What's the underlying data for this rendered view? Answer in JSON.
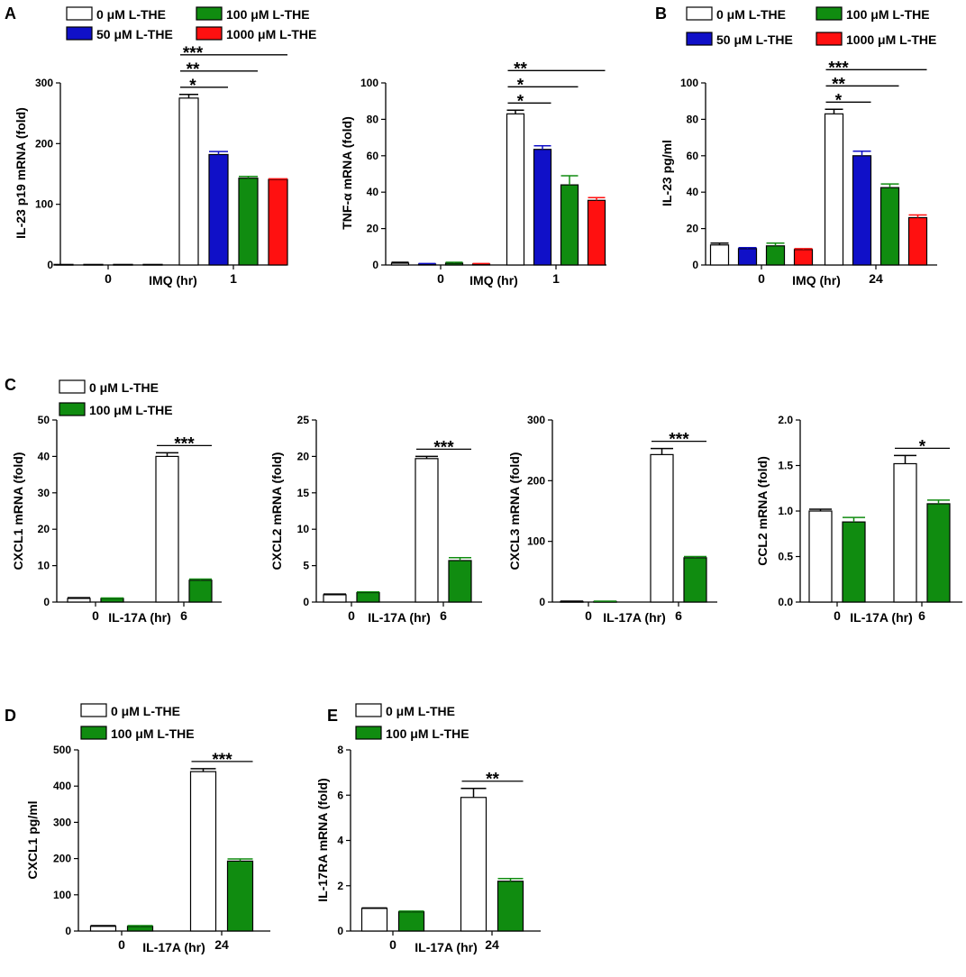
{
  "panels": [
    {
      "id": "A",
      "label": "A"
    },
    {
      "id": "B",
      "label": "B"
    },
    {
      "id": "C",
      "label": "C"
    },
    {
      "id": "D",
      "label": "D"
    },
    {
      "id": "E",
      "label": "E"
    }
  ],
  "legends": [
    {
      "id": "A",
      "entries": [
        {
          "text": "0 μM L-THE",
          "color": "#ffffff"
        },
        {
          "text": "50 μM L-THE",
          "color": "#1010c8"
        },
        {
          "text": "100 μM L-THE",
          "color": "#108c10"
        },
        {
          "text": "1000 μM L-THE",
          "color": "#ff1010"
        }
      ]
    },
    {
      "id": "B",
      "entries": [
        {
          "text": "0 μM L-THE",
          "color": "#ffffff"
        },
        {
          "text": "50 μM L-THE",
          "color": "#1010c8"
        },
        {
          "text": "100 μM L-THE",
          "color": "#108c10"
        },
        {
          "text": "1000 μM L-THE",
          "color": "#ff1010"
        }
      ]
    },
    {
      "id": "C",
      "entries": [
        {
          "text": "0 μM L-THE",
          "color": "#ffffff"
        },
        {
          "text": "100 μM L-THE",
          "color": "#108c10"
        }
      ]
    },
    {
      "id": "D",
      "entries": [
        {
          "text": "0 μM L-THE",
          "color": "#ffffff"
        },
        {
          "text": "100 μM L-THE",
          "color": "#108c10"
        }
      ]
    },
    {
      "id": "E",
      "entries": [
        {
          "text": "0 μM L-THE",
          "color": "#ffffff"
        },
        {
          "text": "100 μM L-THE",
          "color": "#108c10"
        }
      ]
    }
  ],
  "chart_data": [
    {
      "id": "A1",
      "panel": "A",
      "type": "bar",
      "ylabel": "IL-23 p19 mRNA (fold)",
      "xlabel": "IMQ (hr)",
      "ylim": [
        0,
        300
      ],
      "yticks": [
        0,
        100,
        200,
        300
      ],
      "categories": [
        "0",
        "1"
      ],
      "series": [
        {
          "name": "0 μM L-THE",
          "color": "#ffffff",
          "values": [
            1,
            275
          ],
          "errors": [
            0,
            6
          ]
        },
        {
          "name": "50 μM L-THE",
          "color": "#1010c8",
          "values": [
            1,
            182
          ],
          "errors": [
            0,
            5
          ]
        },
        {
          "name": "100 μM L-THE",
          "color": "#108c10",
          "values": [
            1,
            143
          ],
          "errors": [
            0,
            3
          ]
        },
        {
          "name": "1000 μM L-THE",
          "color": "#ff1010",
          "values": [
            1,
            141
          ],
          "errors": [
            0,
            1
          ]
        }
      ],
      "significance": [
        {
          "category": "1",
          "from": 0,
          "to": 1,
          "label": "*"
        },
        {
          "category": "1",
          "from": 0,
          "to": 2,
          "label": "**"
        },
        {
          "category": "1",
          "from": 0,
          "to": 3,
          "label": "***"
        }
      ]
    },
    {
      "id": "A2",
      "panel": "A",
      "type": "bar",
      "ylabel": "TNF-α mRNA (fold)",
      "xlabel": "IMQ (hr)",
      "ylim": [
        0,
        100
      ],
      "yticks": [
        0,
        20,
        40,
        60,
        80,
        100
      ],
      "categories": [
        "0",
        "1"
      ],
      "series": [
        {
          "name": "0 μM L-THE",
          "color": "#ffffff",
          "values": [
            1,
            83
          ],
          "errors": [
            0.5,
            2
          ]
        },
        {
          "name": "50 μM L-THE",
          "color": "#1010c8",
          "values": [
            0.5,
            63.5
          ],
          "errors": [
            0.3,
            2
          ]
        },
        {
          "name": "100 μM L-THE",
          "color": "#108c10",
          "values": [
            1,
            44
          ],
          "errors": [
            0.5,
            5
          ]
        },
        {
          "name": "1000 μM L-THE",
          "color": "#ff1010",
          "values": [
            0.5,
            35.5
          ],
          "errors": [
            0.3,
            1.5
          ]
        }
      ],
      "significance": [
        {
          "category": "1",
          "from": 0,
          "to": 1,
          "label": "*"
        },
        {
          "category": "1",
          "from": 0,
          "to": 2,
          "label": "*"
        },
        {
          "category": "1",
          "from": 0,
          "to": 3,
          "label": "**"
        }
      ]
    },
    {
      "id": "B1",
      "panel": "B",
      "type": "bar",
      "ylabel": "IL-23 pg/ml",
      "xlabel": "IMQ (hr)",
      "ylim": [
        0,
        100
      ],
      "yticks": [
        0,
        20,
        40,
        60,
        80,
        100
      ],
      "categories": [
        "0",
        "24"
      ],
      "series": [
        {
          "name": "0 μM L-THE",
          "color": "#ffffff",
          "values": [
            11,
            83
          ],
          "errors": [
            1,
            2.5
          ]
        },
        {
          "name": "50 μM L-THE",
          "color": "#1010c8",
          "values": [
            9,
            60
          ],
          "errors": [
            0.5,
            2.5
          ]
        },
        {
          "name": "100 μM L-THE",
          "color": "#108c10",
          "values": [
            10.5,
            42.5
          ],
          "errors": [
            1.5,
            2
          ]
        },
        {
          "name": "1000 μM L-THE",
          "color": "#ff1010",
          "values": [
            8.5,
            26
          ],
          "errors": [
            0.5,
            1.5
          ]
        }
      ],
      "significance": [
        {
          "category": "24",
          "from": 0,
          "to": 1,
          "label": "*"
        },
        {
          "category": "24",
          "from": 0,
          "to": 2,
          "label": "**"
        },
        {
          "category": "24",
          "from": 0,
          "to": 3,
          "label": "***"
        }
      ]
    },
    {
      "id": "C1",
      "panel": "C",
      "type": "bar",
      "ylabel": "CXCL1 mRNA (fold)",
      "xlabel": "IL-17A (hr)",
      "ylim": [
        0,
        50
      ],
      "yticks": [
        0,
        10,
        20,
        30,
        40,
        50
      ],
      "categories": [
        "0",
        "6"
      ],
      "series": [
        {
          "name": "0 μM L-THE",
          "color": "#ffffff",
          "values": [
            1,
            40
          ],
          "errors": [
            0.2,
            1
          ]
        },
        {
          "name": "100 μM L-THE",
          "color": "#108c10",
          "values": [
            1,
            6
          ],
          "errors": [
            0.1,
            0.3
          ]
        }
      ],
      "significance": [
        {
          "category": "6",
          "from": 0,
          "to": 1,
          "label": "***"
        }
      ]
    },
    {
      "id": "C2",
      "panel": "C",
      "type": "bar",
      "ylabel": "CXCL2 mRNA (fold)",
      "xlabel": "IL-17A (hr)",
      "ylim": [
        0,
        25
      ],
      "yticks": [
        0,
        5,
        10,
        15,
        20,
        25
      ],
      "categories": [
        "0",
        "6"
      ],
      "series": [
        {
          "name": "0 μM L-THE",
          "color": "#ffffff",
          "values": [
            1,
            19.7
          ],
          "errors": [
            0.1,
            0.3
          ]
        },
        {
          "name": "100 μM L-THE",
          "color": "#108c10",
          "values": [
            1.3,
            5.7
          ],
          "errors": [
            0.1,
            0.4
          ]
        }
      ],
      "significance": [
        {
          "category": "6",
          "from": 0,
          "to": 1,
          "label": "***"
        }
      ]
    },
    {
      "id": "C3",
      "panel": "C",
      "type": "bar",
      "ylabel": "CXCL3 mRNA (fold)",
      "xlabel": "IL-17A (hr)",
      "ylim": [
        0,
        300
      ],
      "yticks": [
        0,
        100,
        200,
        300
      ],
      "categories": [
        "0",
        "6"
      ],
      "series": [
        {
          "name": "0 μM L-THE",
          "color": "#ffffff",
          "values": [
            1,
            243
          ],
          "errors": [
            0.5,
            10
          ]
        },
        {
          "name": "100 μM L-THE",
          "color": "#108c10",
          "values": [
            1,
            73
          ],
          "errors": [
            0.5,
            2
          ]
        }
      ],
      "significance": [
        {
          "category": "6",
          "from": 0,
          "to": 1,
          "label": "***"
        }
      ]
    },
    {
      "id": "C4",
      "panel": "C",
      "type": "bar",
      "ylabel": "CCL2 mRNA (fold)",
      "xlabel": "IL-17A (hr)",
      "ylim": [
        0,
        2.0
      ],
      "yticks": [
        0.0,
        0.5,
        1.0,
        1.5,
        2.0
      ],
      "tick_decimals": 1,
      "categories": [
        "0",
        "6"
      ],
      "series": [
        {
          "name": "0 μM L-THE",
          "color": "#ffffff",
          "values": [
            1.0,
            1.52
          ],
          "errors": [
            0.02,
            0.09
          ]
        },
        {
          "name": "100 μM L-THE",
          "color": "#108c10",
          "values": [
            0.88,
            1.08
          ],
          "errors": [
            0.05,
            0.04
          ]
        }
      ],
      "significance": [
        {
          "category": "6",
          "from": 0,
          "to": 1,
          "label": "*"
        }
      ]
    },
    {
      "id": "D1",
      "panel": "D",
      "type": "bar",
      "ylabel": "CXCL1  pg/ml",
      "xlabel": "IL-17A (hr)",
      "ylim": [
        0,
        500
      ],
      "yticks": [
        0,
        100,
        200,
        300,
        400,
        500
      ],
      "categories": [
        "0",
        "24"
      ],
      "series": [
        {
          "name": "0 μM L-THE",
          "color": "#ffffff",
          "values": [
            13,
            440
          ],
          "errors": [
            2,
            8
          ]
        },
        {
          "name": "100 μM L-THE",
          "color": "#108c10",
          "values": [
            13,
            193
          ],
          "errors": [
            2,
            6
          ]
        }
      ],
      "significance": [
        {
          "category": "24",
          "from": 0,
          "to": 1,
          "label": "***"
        }
      ]
    },
    {
      "id": "E1",
      "panel": "E",
      "type": "bar",
      "ylabel": "IL-17RA mRNA (fold)",
      "xlabel": "IL-17A (hr)",
      "ylim": [
        0,
        8
      ],
      "yticks": [
        0,
        2,
        4,
        6,
        8
      ],
      "categories": [
        "0",
        "24"
      ],
      "series": [
        {
          "name": "0 μM L-THE",
          "color": "#ffffff",
          "values": [
            1.0,
            5.9
          ],
          "errors": [
            0.02,
            0.4
          ]
        },
        {
          "name": "100 μM L-THE",
          "color": "#108c10",
          "values": [
            0.85,
            2.2
          ],
          "errors": [
            0.03,
            0.12
          ]
        }
      ],
      "significance": [
        {
          "category": "24",
          "from": 0,
          "to": 1,
          "label": "**"
        }
      ]
    }
  ]
}
